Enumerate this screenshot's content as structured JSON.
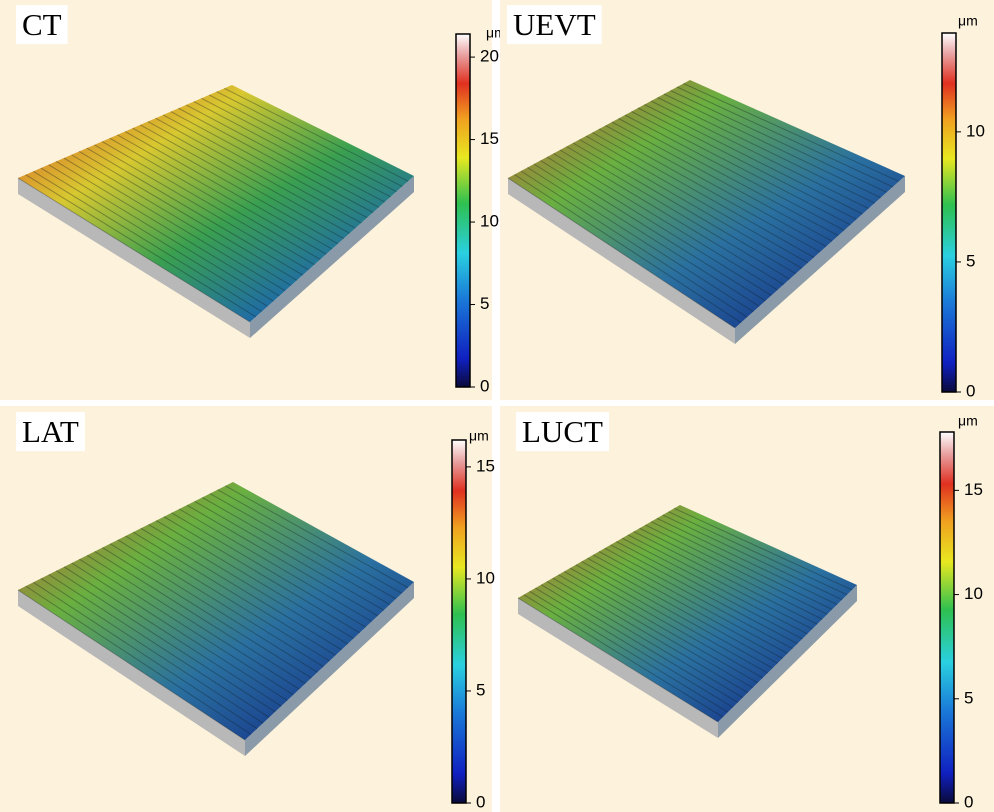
{
  "panels": [
    {
      "label": "CT",
      "unit": "μm",
      "lim": [
        0,
        21.4
      ],
      "ticks": [
        0,
        5,
        10,
        15,
        20
      ]
    },
    {
      "label": "UEVT",
      "unit": "μm",
      "lim": [
        0,
        13.8
      ],
      "ticks": [
        0,
        5,
        10
      ]
    },
    {
      "label": "LAT",
      "unit": "μm",
      "lim": [
        0,
        16.2
      ],
      "ticks": [
        0,
        5,
        10,
        15
      ]
    },
    {
      "label": "LUCT",
      "unit": "μm",
      "lim": [
        0,
        17.8
      ],
      "ticks": [
        0,
        5,
        10,
        15
      ]
    }
  ]
}
